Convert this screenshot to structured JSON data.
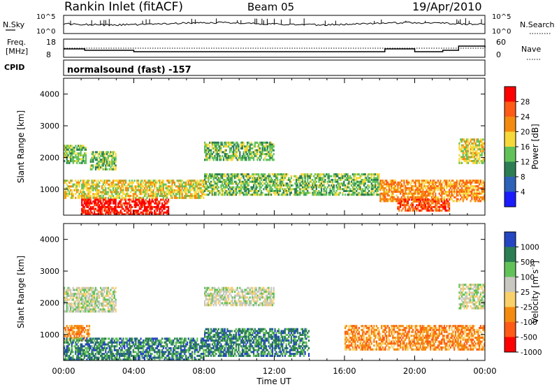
{
  "header": {
    "station": "Rankin Inlet (fitACF)",
    "beam": "Beam 05",
    "date": "19/Apr/2010"
  },
  "top_panels": {
    "nsky_label": "N.Sky",
    "nsky_ticks": [
      "10^5",
      "10^0"
    ],
    "nsearch_label": "N.Search",
    "nsearch_ticks": [
      "10^5",
      "10^0"
    ],
    "freq_label": "Freq.",
    "freq_unit": "[MHz]",
    "freq_ticks": [
      "18",
      "8"
    ],
    "nave_label": "Nave",
    "nave_ticks": [
      "60",
      "0"
    ],
    "cpid_label": "CPID",
    "cpid_value": "normalsound (fast) -157"
  },
  "chart_data": [
    {
      "type": "heatmap",
      "parameter": "Power",
      "xlabel": "",
      "ylabel": "Slant Range [km]",
      "xlim": [
        "00:00",
        "24:00"
      ],
      "ylim": [
        180,
        4500
      ],
      "yticks": [
        1000,
        2000,
        3000,
        4000
      ],
      "colorbar_label": "Power [dB]",
      "colorbar_ticks": [
        "4",
        "8",
        "12",
        "16",
        "20",
        "24",
        "28"
      ],
      "colorbar_colors": [
        "#1b1bff",
        "#2d62b8",
        "#2c7d53",
        "#62c25a",
        "#f7d83a",
        "#f48a0f",
        "#ff5a16",
        "#ff0000"
      ],
      "echo_regions": [
        {
          "t_start": 0.0,
          "t_end": 1.3,
          "r_min": 1800,
          "r_max": 2400,
          "value_db": 14
        },
        {
          "t_start": 1.5,
          "t_end": 3.0,
          "r_min": 1600,
          "r_max": 2200,
          "value_db": 14
        },
        {
          "t_start": 0.0,
          "t_end": 8.0,
          "r_min": 700,
          "r_max": 1300,
          "value_db": 18
        },
        {
          "t_start": 1.0,
          "t_end": 6.0,
          "r_min": 180,
          "r_max": 700,
          "value_db": 30
        },
        {
          "t_start": 8.0,
          "t_end": 12.0,
          "r_min": 1900,
          "r_max": 2500,
          "value_db": 14
        },
        {
          "t_start": 8.0,
          "t_end": 18.0,
          "r_min": 800,
          "r_max": 1500,
          "value_db": 12
        },
        {
          "t_start": 18.0,
          "t_end": 24.0,
          "r_min": 600,
          "r_max": 1300,
          "value_db": 22
        },
        {
          "t_start": 19.0,
          "t_end": 22.0,
          "r_min": 300,
          "r_max": 700,
          "value_db": 26
        },
        {
          "t_start": 22.5,
          "t_end": 24.0,
          "r_min": 1800,
          "r_max": 2600,
          "value_db": 16
        }
      ]
    },
    {
      "type": "heatmap",
      "parameter": "Velocity",
      "xlabel": "Time UT",
      "ylabel": "Slant Range [km]",
      "xlim": [
        "00:00",
        "24:00"
      ],
      "xticks": [
        "00:00",
        "04:00",
        "08:00",
        "12:00",
        "16:00",
        "20:00",
        "00:00"
      ],
      "ylim": [
        180,
        4500
      ],
      "yticks": [
        1000,
        2000,
        3000,
        4000
      ],
      "colorbar_label": "Velocity [m s",
      "colorbar_unit_sup": "-1",
      "colorbar_unit_end": "]",
      "colorbar_ticks": [
        "1000",
        "500",
        "100",
        "25",
        "-25",
        "-100",
        "-500",
        "-1000"
      ],
      "colorbar_colors": [
        "#2546c2",
        "#2c7d53",
        "#62c25a",
        "#c8c8c0",
        "#f9d06a",
        "#f48a0f",
        "#ff5a16",
        "#ff0000"
      ],
      "echo_regions": [
        {
          "t_start": 0.0,
          "t_end": 3.0,
          "r_min": 1700,
          "r_max": 2500,
          "value_ms": 0
        },
        {
          "t_start": 8.0,
          "t_end": 12.0,
          "r_min": 1900,
          "r_max": 2500,
          "value_ms": 0
        },
        {
          "t_start": 0.0,
          "t_end": 1.5,
          "r_min": 800,
          "r_max": 1300,
          "value_ms": -200
        },
        {
          "t_start": 0.0,
          "t_end": 8.0,
          "r_min": 180,
          "r_max": 900,
          "value_ms": 150
        },
        {
          "t_start": 8.0,
          "t_end": 14.0,
          "r_min": 300,
          "r_max": 1200,
          "value_ms": 200
        },
        {
          "t_start": 16.0,
          "t_end": 24.0,
          "r_min": 500,
          "r_max": 1300,
          "value_ms": -200
        },
        {
          "t_start": 22.5,
          "t_end": 24.0,
          "r_min": 1800,
          "r_max": 2600,
          "value_ms": 0
        }
      ]
    }
  ]
}
